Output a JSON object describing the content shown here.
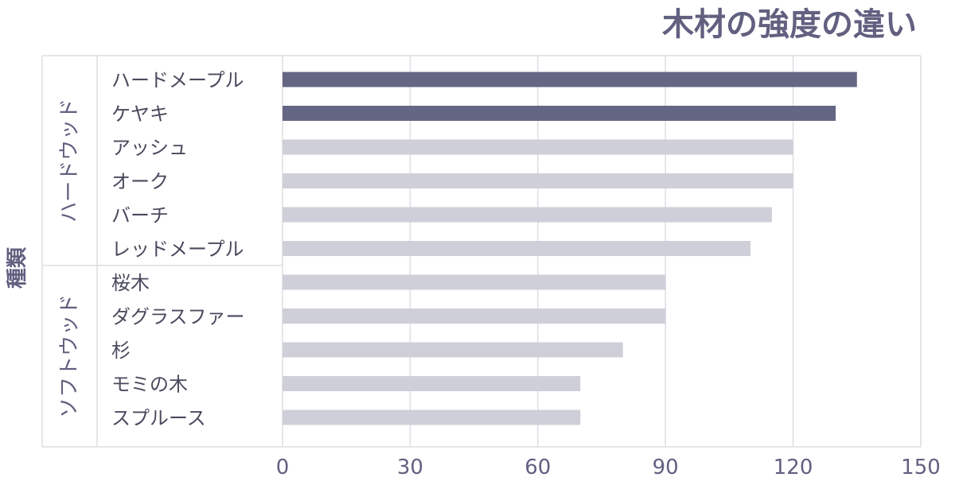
{
  "chart_data": {
    "type": "bar",
    "orientation": "horizontal",
    "title": "木材の強度の違い",
    "ylabel": "種類",
    "xlabel": "",
    "xlim": [
      0,
      150
    ],
    "xticks": [
      0,
      30,
      60,
      90,
      120,
      150
    ],
    "grid": true,
    "groups": [
      {
        "label": "ハードウッド",
        "categories": [
          "ハードメープル",
          "ケヤキ",
          "アッシュ",
          "オーク",
          "バーチ",
          "レッドメープル"
        ]
      },
      {
        "label": "ソフトウッド",
        "categories": [
          "桜木",
          "ダグラスファー",
          "杉",
          "モミの木",
          "スプルース"
        ]
      }
    ],
    "categories": [
      "ハードメープル",
      "ケヤキ",
      "アッシュ",
      "オーク",
      "バーチ",
      "レッドメープル",
      "桜木",
      "ダグラスファー",
      "杉",
      "モミの木",
      "スプルース"
    ],
    "values": [
      135,
      130,
      120,
      120,
      115,
      110,
      90,
      90,
      80,
      70,
      70
    ],
    "highlighted": [
      true,
      true,
      false,
      false,
      false,
      false,
      false,
      false,
      false,
      false,
      false
    ],
    "colors": {
      "highlight": "#656584",
      "normal": "#cfcfda"
    }
  }
}
